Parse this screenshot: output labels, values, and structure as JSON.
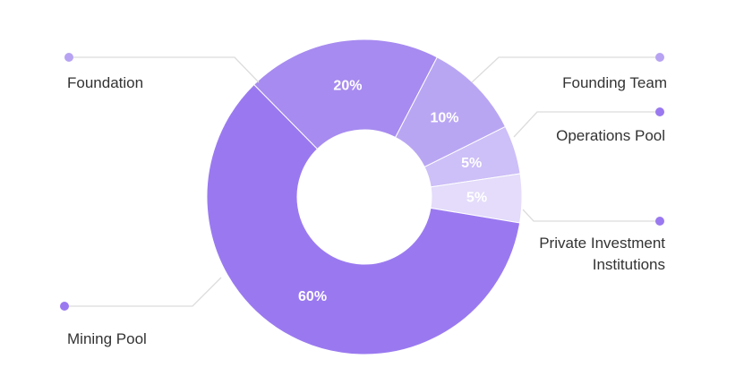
{
  "chart_data": {
    "type": "pie",
    "variant": "donut",
    "slices": [
      {
        "label": "Foundation",
        "value": 20,
        "display": "20%",
        "color": "#a78bf0"
      },
      {
        "label": "Founding Team",
        "value": 10,
        "display": "10%",
        "color": "#b9a6f3"
      },
      {
        "label": "Operations Pool",
        "value": 5,
        "display": "5%",
        "color": "#cdbff7"
      },
      {
        "label": "Private Investment Institutions",
        "value": 5,
        "display": "5%",
        "color": "#e4dcfa"
      },
      {
        "label": "Mining Pool",
        "value": 60,
        "display": "60%",
        "color": "#9a79f0"
      }
    ],
    "legend": {
      "items": [
        {
          "label_lines": [
            "Foundation"
          ],
          "dot_color": "#b7a3f2"
        },
        {
          "label_lines": [
            "Founding Team"
          ],
          "dot_color": "#b7a3f2"
        },
        {
          "label_lines": [
            "Operations Pool"
          ],
          "dot_color": "#9a79f0"
        },
        {
          "label_lines": [
            "Private Investment",
            "Institutions"
          ],
          "dot_color": "#9a79f0"
        },
        {
          "label_lines": [
            "Mining Pool"
          ],
          "dot_color": "#9a79f0"
        }
      ]
    }
  }
}
